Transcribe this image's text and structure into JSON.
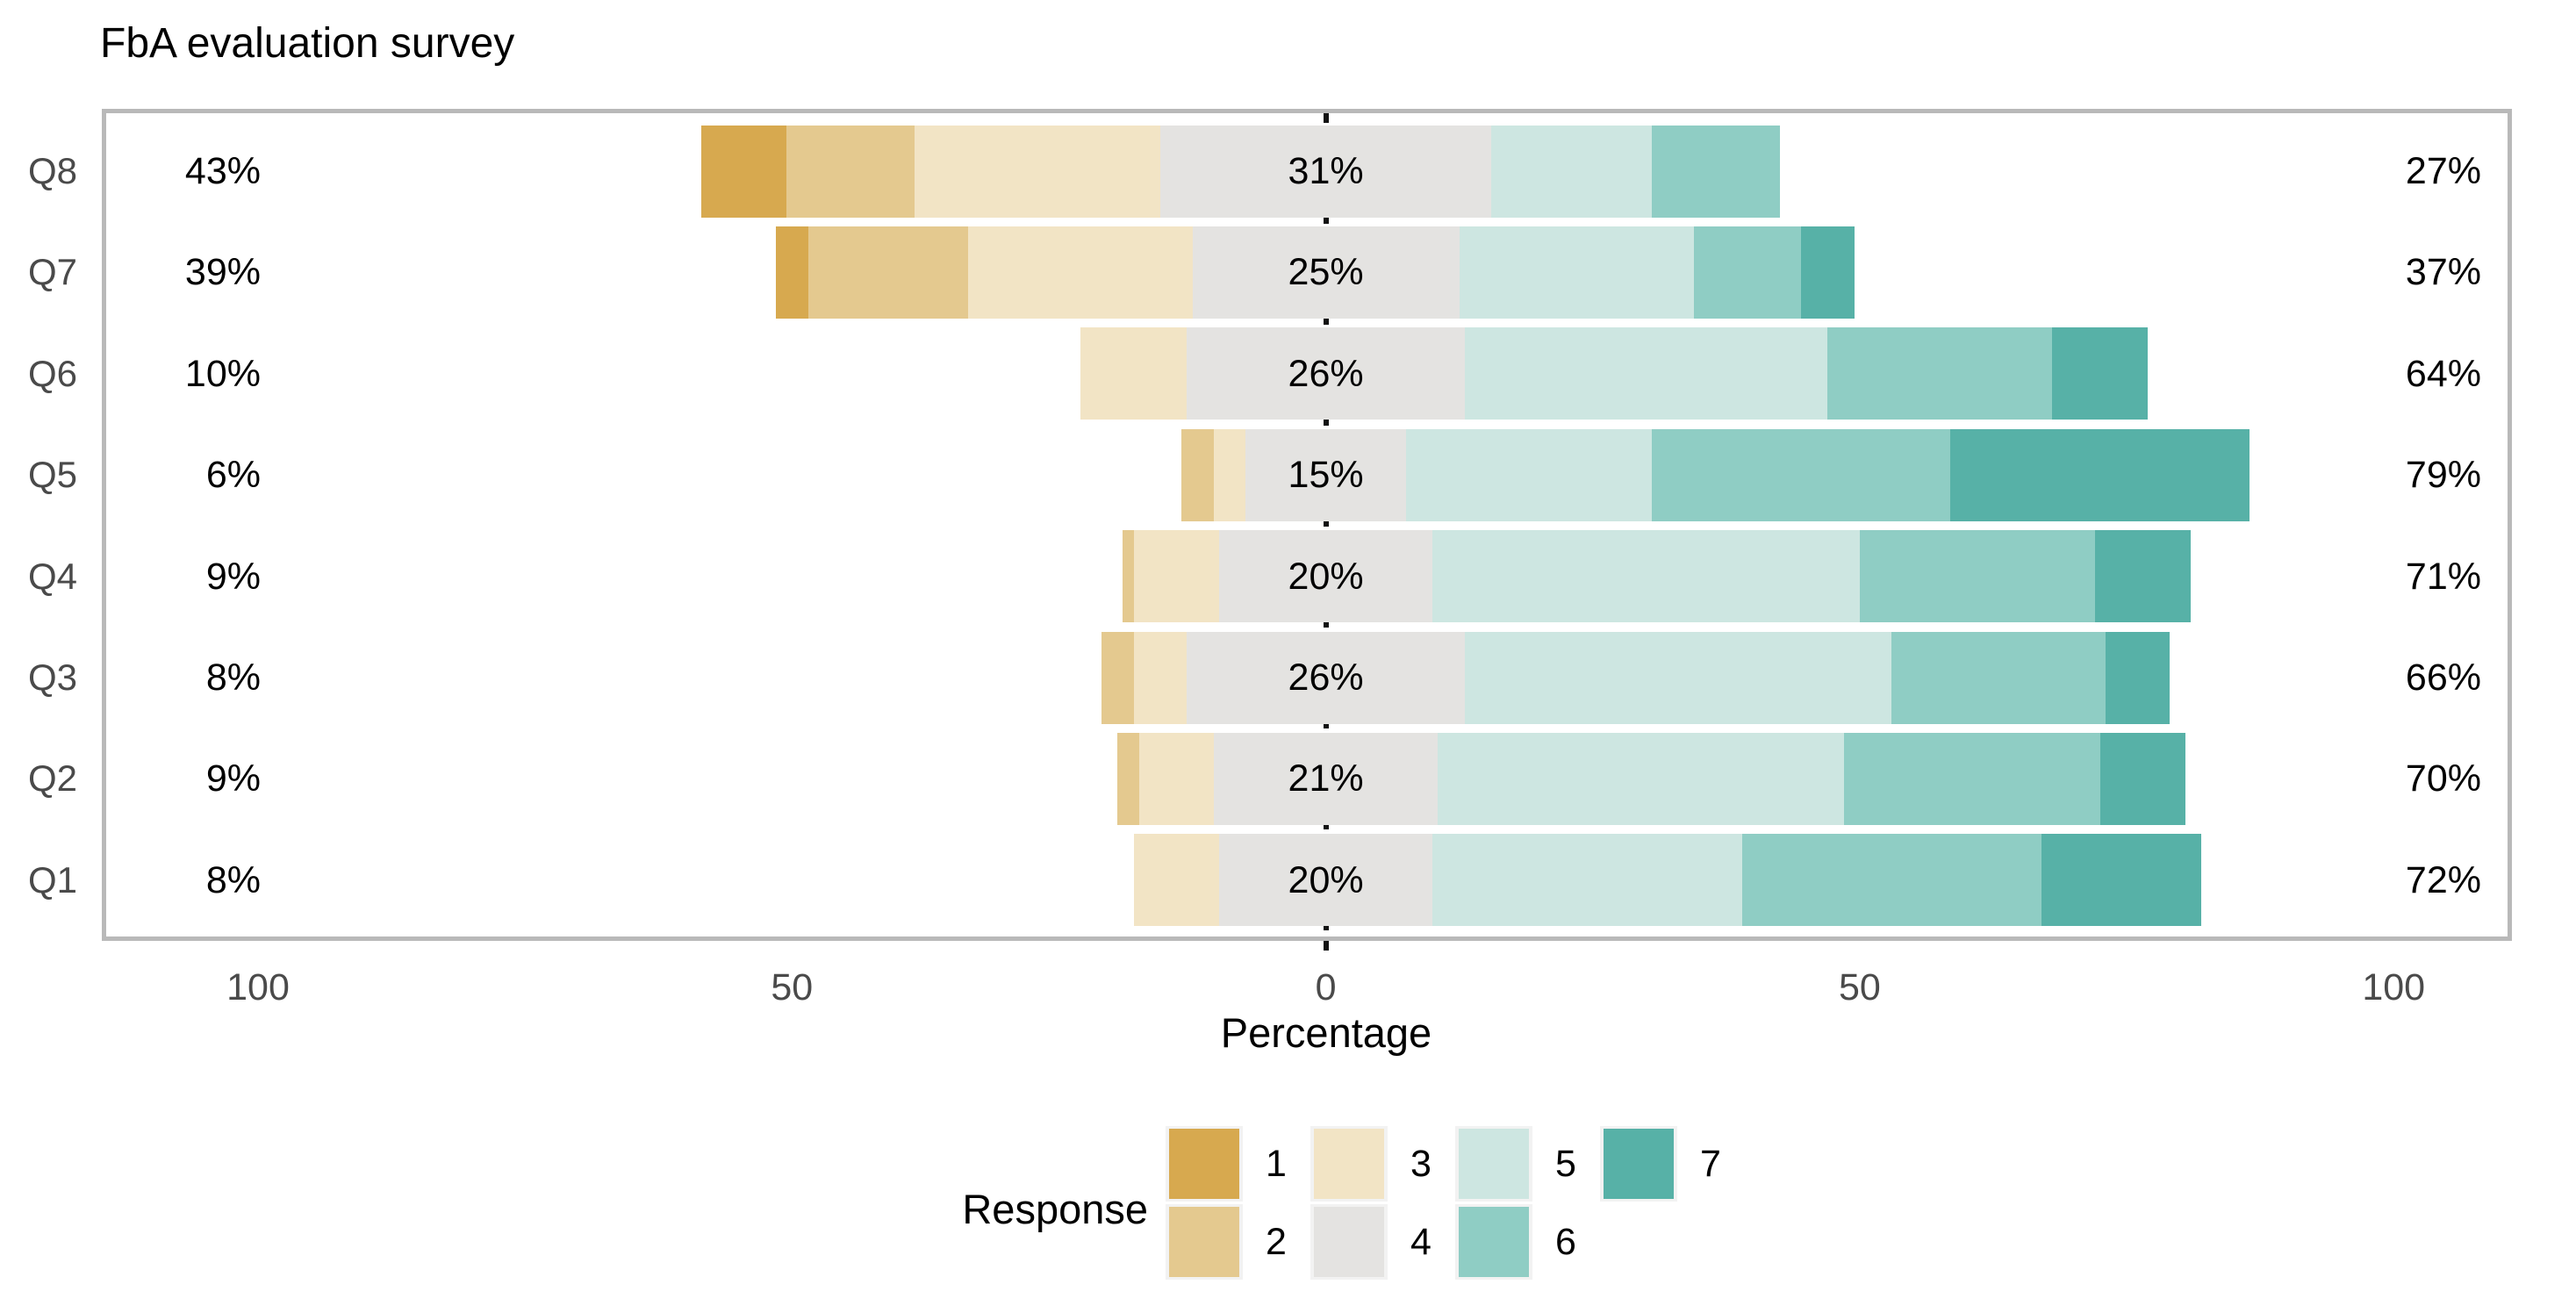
{
  "chart_data": {
    "type": "bar",
    "variant": "diverging_stacked_likert",
    "title": "FbA evaluation survey",
    "xlabel": "Percentage",
    "x_ticks": [
      {
        "label": "100",
        "value": -100
      },
      {
        "label": "50",
        "value": -50
      },
      {
        "label": "0",
        "value": 0
      },
      {
        "label": "50",
        "value": 50
      },
      {
        "label": "100",
        "value": 100
      }
    ],
    "xlim": [
      -114,
      111
    ],
    "grid": false,
    "zero_reference_line": "dashed-black",
    "panel_border_color": "#b9b9b9",
    "axis_text_color": "#4a4a4a",
    "legend": {
      "title": "Response",
      "position": "bottom",
      "items": [
        {
          "label": "1",
          "color": "#d7a94f"
        },
        {
          "label": "2",
          "color": "#e4c98f"
        },
        {
          "label": "3",
          "color": "#f2e4c5"
        },
        {
          "label": "4",
          "color": "#e4e3e1"
        },
        {
          "label": "5",
          "color": "#cde6e1"
        },
        {
          "label": "6",
          "color": "#8fcdc4"
        },
        {
          "label": "7",
          "color": "#57b1a7"
        }
      ]
    },
    "rows": [
      {
        "label": "Q8",
        "left_total": "43%",
        "center_total": "31%",
        "right_total": "27%",
        "values": [
          8,
          12,
          23,
          31,
          15,
          12,
          0
        ]
      },
      {
        "label": "Q7",
        "left_total": "39%",
        "center_total": "25%",
        "right_total": "37%",
        "values": [
          3,
          15,
          21,
          25,
          22,
          10,
          5
        ]
      },
      {
        "label": "Q6",
        "left_total": "10%",
        "center_total": "26%",
        "right_total": "64%",
        "values": [
          0,
          0,
          10,
          26,
          34,
          21,
          9
        ]
      },
      {
        "label": "Q5",
        "left_total": "6%",
        "center_total": "15%",
        "right_total": "79%",
        "values": [
          0,
          3,
          3,
          15,
          23,
          28,
          28
        ]
      },
      {
        "label": "Q4",
        "left_total": "9%",
        "center_total": "20%",
        "right_total": "71%",
        "values": [
          0,
          1,
          8,
          20,
          40,
          22,
          9
        ]
      },
      {
        "label": "Q3",
        "left_total": "8%",
        "center_total": "26%",
        "right_total": "66%",
        "values": [
          0,
          3,
          5,
          26,
          40,
          20,
          6
        ]
      },
      {
        "label": "Q2",
        "left_total": "9%",
        "center_total": "21%",
        "right_total": "70%",
        "values": [
          0,
          2,
          7,
          21,
          38,
          24,
          8
        ]
      },
      {
        "label": "Q1",
        "left_total": "8%",
        "center_total": "20%",
        "right_total": "72%",
        "values": [
          0,
          0,
          8,
          20,
          29,
          28,
          15
        ]
      }
    ]
  }
}
